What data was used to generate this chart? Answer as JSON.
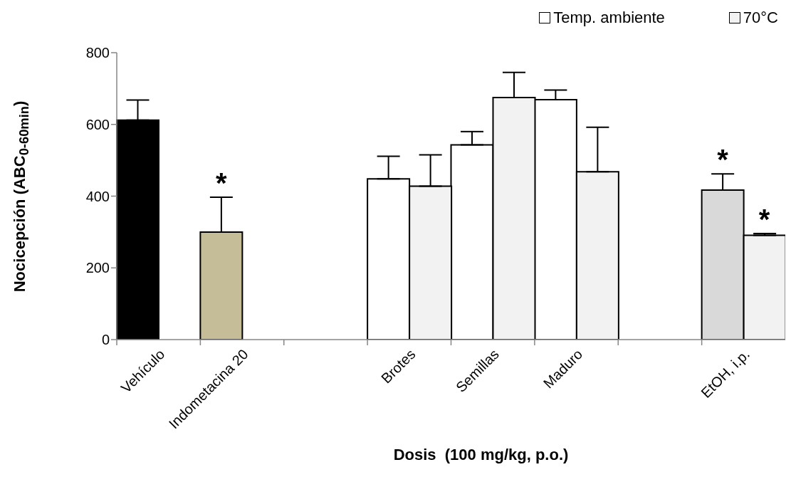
{
  "chart_data": {
    "type": "bar",
    "xlabel": "Dosis  (100 mg/kg, p.o.)",
    "ylabel": "Nocicepción (ABC$_{0-60min}$)",
    "categories": [
      "Vehículo",
      "Indometacina 20",
      null,
      "Brotes",
      "Semillas",
      "Maduro",
      null,
      "EtOH, i.p."
    ],
    "series": [
      {
        "name": "Temp. ambiente",
        "color": "#ffffff",
        "colors": [
          "#000000",
          "#c4bd97",
          "#ffffff",
          "#ffffff",
          "#ffffff",
          "#ffffff",
          "#ffffff",
          "#d9d9d9"
        ],
        "values": [
          612,
          300,
          null,
          448,
          543,
          669,
          null,
          417
        ],
        "value_labels": [
          null,
          "*",
          null,
          null,
          null,
          null,
          null,
          "*"
        ],
        "errors": [
          [
            612,
            668
          ],
          [
            300,
            397
          ],
          null,
          [
            448,
            511
          ],
          [
            543,
            580
          ],
          [
            669,
            696
          ],
          null,
          [
            417,
            462
          ]
        ]
      },
      {
        "name": "70°C",
        "color": "#f2f2f2",
        "values": [
          null,
          null,
          null,
          428,
          675,
          468,
          null,
          291
        ],
        "value_labels": [
          null,
          null,
          null,
          null,
          null,
          null,
          null,
          "*"
        ],
        "errors": [
          null,
          null,
          null,
          [
            428,
            515
          ],
          [
            675,
            745
          ],
          [
            468,
            592
          ],
          null,
          [
            291,
            296
          ]
        ]
      }
    ],
    "ylim": [
      0,
      800
    ],
    "yticks": [
      0,
      200,
      400,
      600,
      800
    ],
    "legend": "top right"
  }
}
